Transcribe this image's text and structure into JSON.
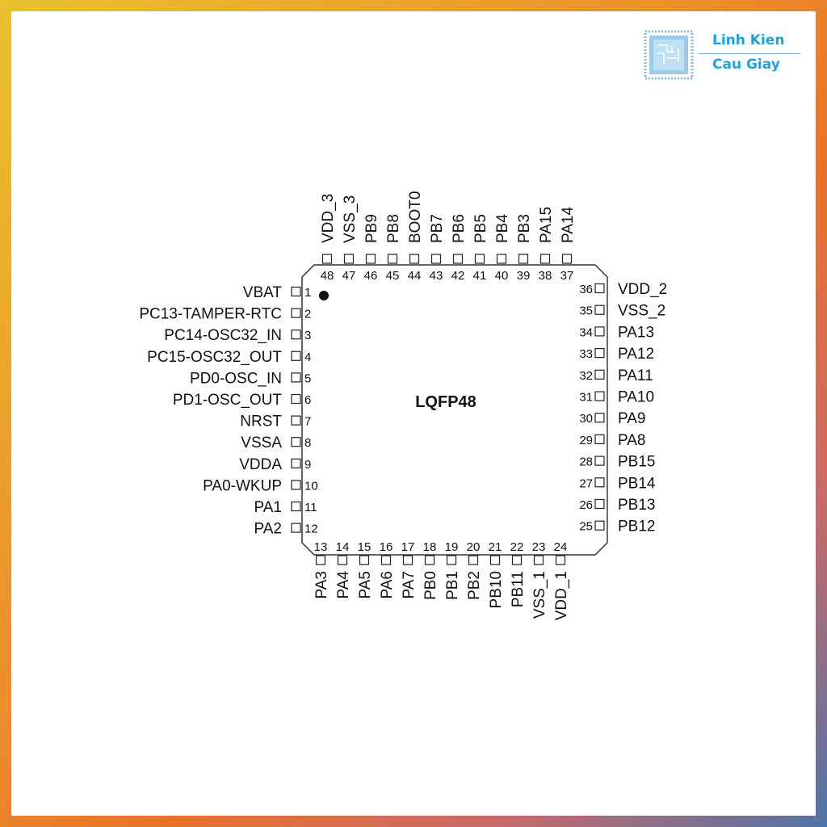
{
  "logo": {
    "line1": "Linh Kien",
    "line2": "Cau Giay",
    "color": "#1aa3e0"
  },
  "chip": {
    "package": "LQFP48",
    "pin1_marker": true,
    "left_pins": [
      {
        "num": "1",
        "name": "VBAT"
      },
      {
        "num": "2",
        "name": "PC13-TAMPER-RTC"
      },
      {
        "num": "3",
        "name": "PC14-OSC32_IN"
      },
      {
        "num": "4",
        "name": "PC15-OSC32_OUT"
      },
      {
        "num": "5",
        "name": "PD0-OSC_IN"
      },
      {
        "num": "6",
        "name": "PD1-OSC_OUT"
      },
      {
        "num": "7",
        "name": "NRST"
      },
      {
        "num": "8",
        "name": "VSSA"
      },
      {
        "num": "9",
        "name": "VDDA"
      },
      {
        "num": "10",
        "name": "PA0-WKUP"
      },
      {
        "num": "11",
        "name": "PA1"
      },
      {
        "num": "12",
        "name": "PA2"
      }
    ],
    "bottom_pins": [
      {
        "num": "13",
        "name": "PA3"
      },
      {
        "num": "14",
        "name": "PA4"
      },
      {
        "num": "15",
        "name": "PA5"
      },
      {
        "num": "16",
        "name": "PA6"
      },
      {
        "num": "17",
        "name": "PA7"
      },
      {
        "num": "18",
        "name": "PB0"
      },
      {
        "num": "19",
        "name": "PB1"
      },
      {
        "num": "20",
        "name": "PB2"
      },
      {
        "num": "21",
        "name": "PB10"
      },
      {
        "num": "22",
        "name": "PB11"
      },
      {
        "num": "23",
        "name": "VSS_1"
      },
      {
        "num": "24",
        "name": "VDD_1"
      }
    ],
    "right_pins": [
      {
        "num": "36",
        "name": "VDD_2"
      },
      {
        "num": "35",
        "name": "VSS_2"
      },
      {
        "num": "34",
        "name": "PA13"
      },
      {
        "num": "33",
        "name": "PA12"
      },
      {
        "num": "32",
        "name": "PA11"
      },
      {
        "num": "31",
        "name": "PA10"
      },
      {
        "num": "30",
        "name": "PA9"
      },
      {
        "num": "29",
        "name": "PA8"
      },
      {
        "num": "28",
        "name": "PB15"
      },
      {
        "num": "27",
        "name": "PB14"
      },
      {
        "num": "26",
        "name": "PB13"
      },
      {
        "num": "25",
        "name": "PB12"
      }
    ],
    "top_pins": [
      {
        "num": "48",
        "name": "VDD_3"
      },
      {
        "num": "47",
        "name": "VSS_3"
      },
      {
        "num": "46",
        "name": "PB9"
      },
      {
        "num": "45",
        "name": "PB8"
      },
      {
        "num": "44",
        "name": "BOOT0"
      },
      {
        "num": "43",
        "name": "PB7"
      },
      {
        "num": "42",
        "name": "PB6"
      },
      {
        "num": "41",
        "name": "PB5"
      },
      {
        "num": "40",
        "name": "PB4"
      },
      {
        "num": "39",
        "name": "PB3"
      },
      {
        "num": "38",
        "name": "PA15"
      },
      {
        "num": "37",
        "name": "PA14"
      }
    ]
  }
}
